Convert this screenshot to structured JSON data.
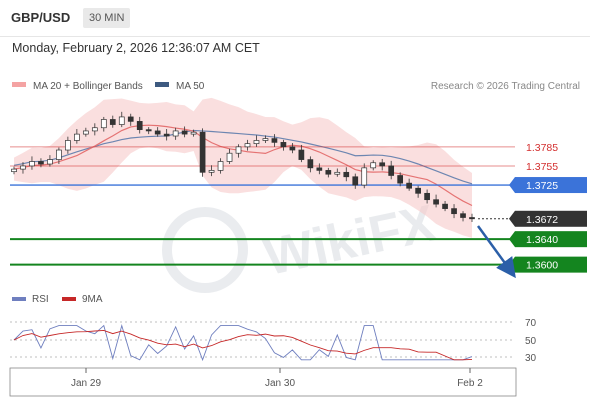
{
  "header": {
    "symbol": "GBP/USD",
    "timeframe": "30 MIN",
    "datetime": "Monday, February 2, 2026 12:36:07 AM CET"
  },
  "legend": {
    "ma20_label": "MA 20 + Bollinger Bands",
    "ma50_label": "MA 50",
    "credit": "Research © 2026 Trading Central",
    "rsi_label": "RSI",
    "ma9_label": "9MA"
  },
  "colors": {
    "ma20": "#e57373",
    "ma50": "#4a6fa5",
    "bollinger": "#f7c9c9",
    "resistance": "#d32f2f",
    "pivot": "#3b73d9",
    "support": "#14851f",
    "last": "#333333",
    "rsi": "#6f7fbf",
    "ma9": "#c62828"
  },
  "watermark": "WikiFX",
  "chart_data": [
    {
      "type": "line",
      "title": "",
      "x_ticks": [
        "Jan 29",
        "Jan 30",
        "Feb 2"
      ],
      "ylim": [
        1.3568,
        1.3868
      ],
      "grid": false,
      "series": [
        {
          "name": "GBP/USD",
          "approx_closes": [
            1.375,
            1.3755,
            1.3762,
            1.3758,
            1.3765,
            1.378,
            1.3795,
            1.3805,
            1.381,
            1.3815,
            1.3828,
            1.382,
            1.3832,
            1.3825,
            1.3812,
            1.381,
            1.3805,
            1.3802,
            1.381,
            1.3805,
            1.3808,
            1.3745,
            1.3748,
            1.3762,
            1.3775,
            1.3785,
            1.379,
            1.3795,
            1.3798,
            1.3792,
            1.3785,
            1.378,
            1.3765,
            1.3752,
            1.3748,
            1.3742,
            1.3745,
            1.3738,
            1.3725,
            1.3752,
            1.376,
            1.3755,
            1.374,
            1.3728,
            1.372,
            1.3712,
            1.3702,
            1.3695,
            1.3688,
            1.368,
            1.3674,
            1.3672
          ]
        },
        {
          "name": "MA 50"
        },
        {
          "name": "MA 20 + Bollinger Bands"
        }
      ],
      "levels": [
        {
          "label": "1.3785",
          "value": 1.3785,
          "kind": "resistance"
        },
        {
          "label": "1.3755",
          "value": 1.3755,
          "kind": "resistance"
        },
        {
          "label": "1.3725",
          "value": 1.3725,
          "kind": "pivot"
        },
        {
          "label": "1.3672",
          "value": 1.3672,
          "kind": "last"
        },
        {
          "label": "1.3640",
          "value": 1.364,
          "kind": "support"
        },
        {
          "label": "1.3600",
          "value": 1.36,
          "kind": "support"
        }
      ],
      "forecast": "down, toward 1.3600"
    },
    {
      "type": "line",
      "title": "",
      "ylim": [
        20,
        80
      ],
      "y_ticks": [
        "70",
        "50",
        "30"
      ],
      "series": [
        {
          "name": "RSI"
        },
        {
          "name": "9MA"
        }
      ]
    }
  ]
}
